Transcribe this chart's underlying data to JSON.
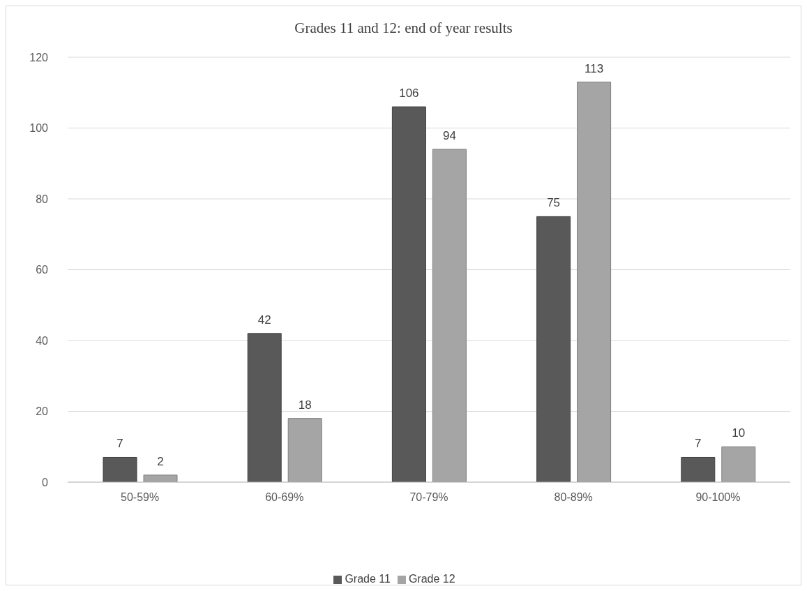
{
  "chart_data": {
    "type": "bar",
    "title": "Grades 11 and 12: end of year results",
    "categories": [
      "50-59%",
      "60-69%",
      "70-79%",
      "80-89%",
      "90-100%"
    ],
    "series": [
      {
        "name": "Grade 11",
        "color": "#595959",
        "values": [
          7,
          42,
          106,
          75,
          7
        ]
      },
      {
        "name": "Grade 12",
        "color": "#a5a5a5",
        "values": [
          2,
          18,
          94,
          113,
          10
        ]
      }
    ],
    "ylim": [
      0,
      120
    ],
    "yticks": [
      0,
      20,
      40,
      60,
      80,
      100,
      120
    ],
    "grid": "y",
    "legend": "bottom",
    "data_labels": true
  }
}
